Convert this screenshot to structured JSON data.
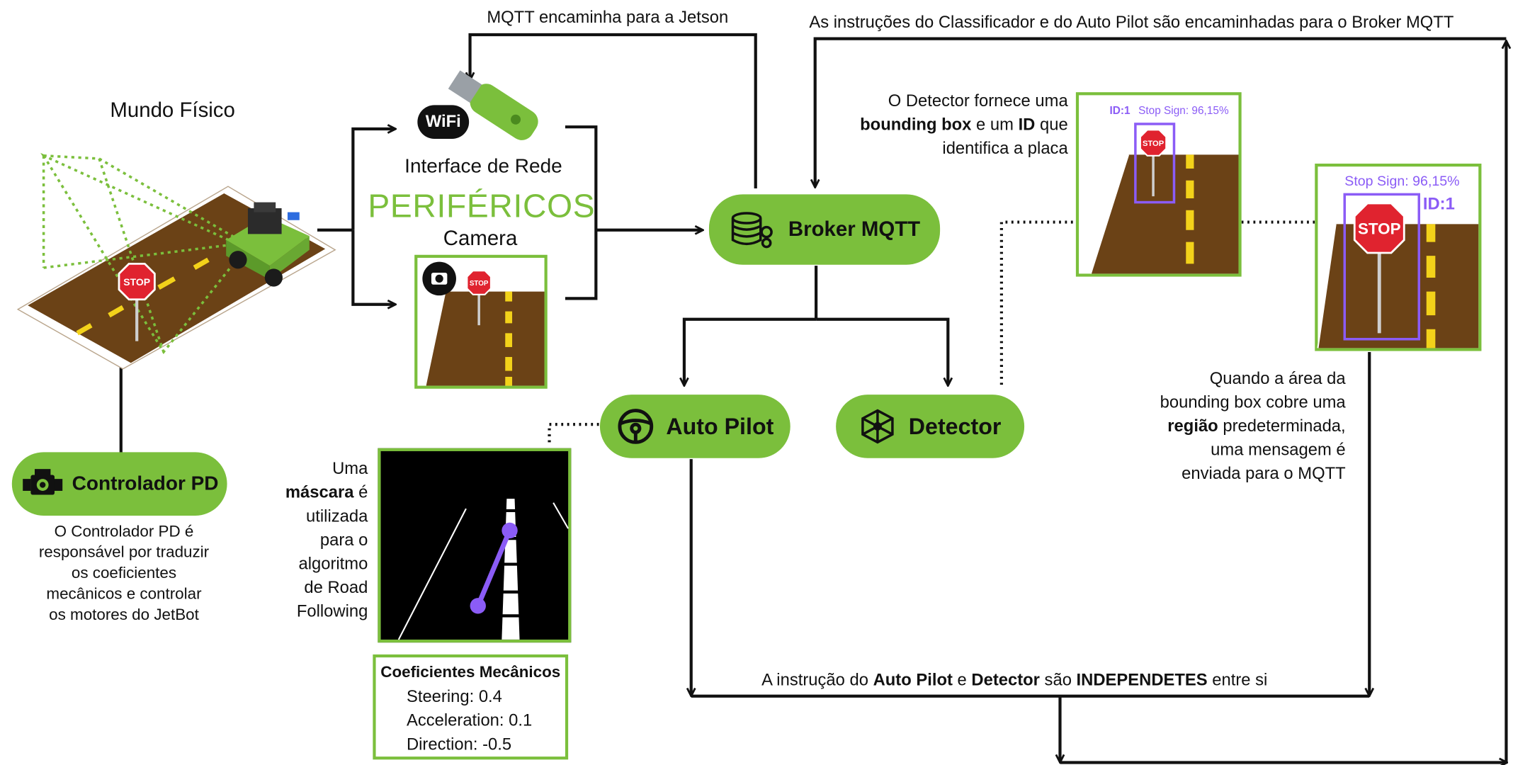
{
  "accent": "#7bbf3c",
  "purple": "#8b5cf6",
  "labels": {
    "mundo_fisico": "Mundo Físico",
    "mqtt_jetson": "MQTT encaminha para a Jetson",
    "instrucoes_broker": "As instruções do Classificador e do Auto Pilot são encaminhadas para o Broker MQTT",
    "interface_rede": "Interface de Rede",
    "perifericos": "PERIFÉRICOS",
    "camera": "Camera",
    "wifi_logo": "WiFi",
    "stop_text": "STOP"
  },
  "nodes": {
    "broker": "Broker MQTT",
    "autopilot": "Auto Pilot",
    "detector": "Detector",
    "controlador": "Controlador PD"
  },
  "detector_note": {
    "l1": "O Detector fornece uma",
    "l2_b1": "bounding box",
    "l2_m": " e um ",
    "l2_b2": "ID",
    "l2_e": " que",
    "l3": "identifica a placa"
  },
  "detection_small": {
    "id": "ID:1",
    "label": "Stop Sign: 96,15%"
  },
  "detection_large": {
    "label": "Stop Sign: 96,15%",
    "id": "ID:1"
  },
  "area_note": {
    "l1": "Quando a área da",
    "l2": "bounding box cobre uma",
    "l3_b": "região",
    "l3_e": " predeterminada,",
    "l4": "uma mensagem é",
    "l5": "enviada para o MQTT"
  },
  "mask_note": {
    "l1": "Uma",
    "l2_b": "máscara",
    "l2_e": " é",
    "l3": "utilizada",
    "l4": "para o",
    "l5": "algoritmo",
    "l6": "de Road",
    "l7": "Following"
  },
  "coeficientes": {
    "title": "Coeficientes Mecânicos",
    "steering": "Steering: 0.4",
    "acceleration": "Acceleration: 0.1",
    "direction": "Direction: -0.5"
  },
  "controlador_note": {
    "l1": "O Controlador PD é",
    "l2": "responsável por traduzir",
    "l3": "os coeficientes",
    "l4": "mecânicos e controlar",
    "l5": "os motores do JetBot"
  },
  "bottom_note": {
    "p1": "A instrução do ",
    "b1": "Auto Pilot",
    "p2": " e ",
    "b2": "Detector",
    "p3": " são ",
    "b3": "INDEPENDETES",
    "p4": " entre si"
  }
}
